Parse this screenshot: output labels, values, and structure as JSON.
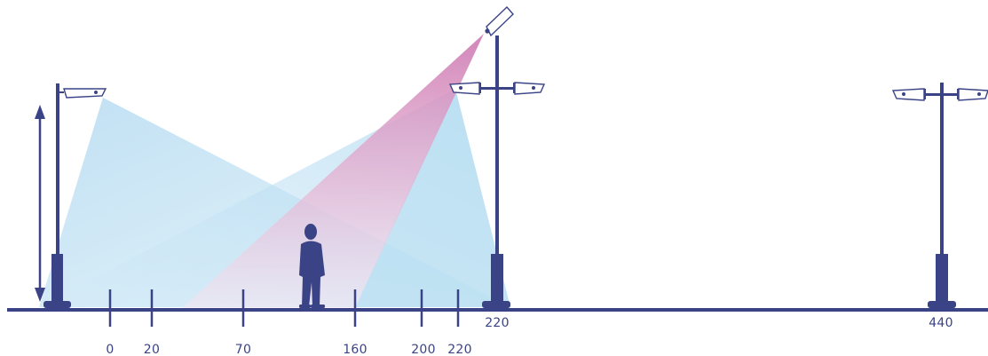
{
  "colors": {
    "ink": "#3a4385",
    "light_beam": "#b3dcf1",
    "pink_beam_top": "#cf7fb5",
    "pink_beam_bottom": "#f4e2ef",
    "background": "#ffffff"
  },
  "ground_ticks": [
    "0",
    "20",
    "70",
    "160",
    "200",
    "220"
  ],
  "pole_labels": {
    "middle": "220",
    "right": "440"
  }
}
